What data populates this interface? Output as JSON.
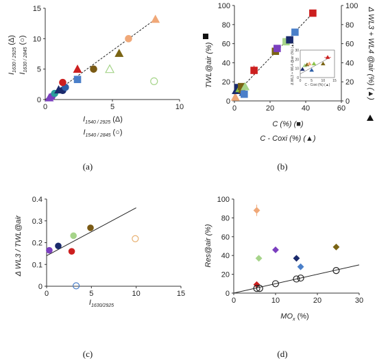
{
  "chart_data": [
    {
      "panel": "(a)",
      "type": "scatter",
      "xlabel_parts": [
        {
          "main": "I",
          "sub": "1540 / 2925",
          "suffix": " (Δ)"
        },
        {
          "main": "I",
          "sub": "1540 / 2845",
          "suffix": " (○)"
        }
      ],
      "ylabel_parts": [
        {
          "main": "I",
          "sub": "1630 / 2925",
          "suffix": " (Δ)"
        },
        {
          "main": "I",
          "sub": "1630 / 2845",
          "suffix": " (○)"
        }
      ],
      "xlim": [
        0,
        10
      ],
      "ylim": [
        0,
        15
      ],
      "xticks": [
        "0",
        "5",
        "10"
      ],
      "yticks": [
        "0",
        "5",
        "10",
        "15"
      ],
      "fit_line": {
        "style": "dashed",
        "x": [
          0,
          8.2
        ],
        "y": [
          0,
          13.2
        ]
      },
      "points": [
        {
          "x": 0.5,
          "y": 0.5,
          "marker": "circle",
          "color": "#7b3fbf",
          "filled": true
        },
        {
          "x": 0.3,
          "y": 0.3,
          "marker": "triangle",
          "color": "#7b3fbf",
          "filled": true
        },
        {
          "x": 0.7,
          "y": 1.0,
          "marker": "circle",
          "color": "#2a9d9a",
          "filled": true
        },
        {
          "x": 1.3,
          "y": 1.5,
          "marker": "circle",
          "color": "#1a2a6c",
          "filled": true
        },
        {
          "x": 1.0,
          "y": 1.6,
          "marker": "triangle",
          "color": "#1a2a6c",
          "filled": true
        },
        {
          "x": 1.5,
          "y": 2.0,
          "marker": "circle",
          "color": "#2d5fa8",
          "filled": true
        },
        {
          "x": 1.3,
          "y": 2.8,
          "marker": "circle",
          "color": "#cc1f1f",
          "filled": true
        },
        {
          "x": 2.4,
          "y": 5.0,
          "marker": "triangle",
          "color": "#cc1f1f",
          "filled": true
        },
        {
          "x": 2.4,
          "y": 3.3,
          "marker": "square",
          "color": "#4a7fc9",
          "filled": true
        },
        {
          "x": 3.6,
          "y": 5.0,
          "marker": "circle",
          "color": "#7a5a14",
          "filled": true
        },
        {
          "x": 5.5,
          "y": 7.6,
          "marker": "triangle",
          "color": "#7a6414",
          "filled": true
        },
        {
          "x": 4.8,
          "y": 5.0,
          "marker": "triangle",
          "color": "#a6d48a",
          "filled": false
        },
        {
          "x": 6.2,
          "y": 10.0,
          "marker": "circle",
          "color": "#f0a878",
          "filled": true
        },
        {
          "x": 8.2,
          "y": 13.2,
          "marker": "triangle",
          "color": "#f0a878",
          "filled": true
        },
        {
          "x": 8.1,
          "y": 3.0,
          "marker": "circle",
          "color": "#a6d48a",
          "filled": false
        }
      ]
    },
    {
      "panel": "(b)",
      "type": "scatter",
      "ylabel_left": "TWL@air (%)",
      "ylabel_right": "Δ WL3 + WL4 @air (%) (▲)",
      "xlabel_lines": [
        "C (%) (■)",
        "C - Coxi (%) (▲)"
      ],
      "xlim": [
        0,
        60
      ],
      "ylim": [
        0,
        100
      ],
      "xticks": [
        "0",
        "20",
        "40",
        "60"
      ],
      "yticks": [
        "0",
        "20",
        "40",
        "60",
        "80",
        "100"
      ],
      "fit_line": {
        "style": "dashed",
        "x": [
          0,
          44
        ],
        "y": [
          6,
          92
        ]
      },
      "points": [
        {
          "x": 0.5,
          "y": 4,
          "marker": "triangle",
          "color": "#f0a878"
        },
        {
          "x": 1,
          "y": 11,
          "marker": "triangle",
          "color": "#1a2a6c"
        },
        {
          "x": 2,
          "y": 14,
          "marker": "square",
          "color": "#1a2a6c"
        },
        {
          "x": 3,
          "y": 13,
          "marker": "triangle",
          "color": "#8bc34a"
        },
        {
          "x": 4,
          "y": 15,
          "marker": "square",
          "color": "#7a6414"
        },
        {
          "x": 4.5,
          "y": 12,
          "marker": "triangle",
          "color": "#7a6414"
        },
        {
          "x": 5,
          "y": 9,
          "marker": "triangle",
          "color": "#2d5fa8"
        },
        {
          "x": 5.5,
          "y": 7,
          "marker": "square",
          "color": "#4a7fc9"
        },
        {
          "x": 6,
          "y": 15,
          "marker": "triangle",
          "color": "#a6d48a"
        },
        {
          "x": 11,
          "y": 32,
          "marker": "square",
          "color": "#cc1f1f"
        },
        {
          "x": 23,
          "y": 52,
          "marker": "square",
          "color": "#7a6414"
        },
        {
          "x": 24,
          "y": 55,
          "marker": "square",
          "color": "#7b3fbf"
        },
        {
          "x": 29,
          "y": 62,
          "marker": "square",
          "color": "#a6d48a"
        },
        {
          "x": 31,
          "y": 64,
          "marker": "square",
          "color": "#1a2a6c"
        },
        {
          "x": 34,
          "y": 72,
          "marker": "square",
          "color": "#4a7fc9"
        },
        {
          "x": 44,
          "y": 92,
          "marker": "square",
          "color": "#cc1f1f"
        }
      ],
      "inset": {
        "xlabel": "C - Coxi (%) (▲)",
        "ylabel": "Δ WL3 + WL4 @air (%) (▲)",
        "xticks": [
          "0",
          "5",
          "10",
          "15"
        ],
        "yticks": [
          "0",
          "10",
          "20",
          "30"
        ],
        "xlim": [
          0,
          15
        ],
        "ylim": [
          0,
          30
        ],
        "points": [
          {
            "x": 1,
            "y": 9,
            "color": "#1a2a6c"
          },
          {
            "x": 2,
            "y": 13,
            "color": "#a6d48a"
          },
          {
            "x": 3,
            "y": 14,
            "color": "#7a6414"
          },
          {
            "x": 4,
            "y": 15,
            "color": "#f0a878"
          },
          {
            "x": 5,
            "y": 8,
            "color": "#2d5fa8"
          },
          {
            "x": 6,
            "y": 15,
            "color": "#8bc34a"
          },
          {
            "x": 10,
            "y": 15,
            "color": "#7a6414"
          },
          {
            "x": 12,
            "y": 22,
            "color": "#cc1f1f"
          }
        ]
      }
    },
    {
      "panel": "(c)",
      "type": "scatter",
      "ylabel": "Δ WL3 / TWL@air",
      "xlabel": {
        "main": "I",
        "sub": "1630/2925"
      },
      "xlim": [
        0,
        15
      ],
      "ylim": [
        0,
        0.4
      ],
      "xticks": [
        "0",
        "5",
        "10",
        "15"
      ],
      "yticks": [
        "0",
        "0.1",
        "0.2",
        "0.3",
        "0.4"
      ],
      "fit_line": {
        "style": "solid",
        "x": [
          0,
          10
        ],
        "y": [
          0.14,
          0.36
        ]
      },
      "points": [
        {
          "x": 0.3,
          "y": 0.165,
          "color": "#7b3fbf",
          "filled": true
        },
        {
          "x": 1.3,
          "y": 0.185,
          "color": "#1a2a6c",
          "filled": true
        },
        {
          "x": 2.8,
          "y": 0.16,
          "color": "#cc1f1f",
          "filled": true
        },
        {
          "x": 3.0,
          "y": 0.232,
          "color": "#a6d48a",
          "filled": true
        },
        {
          "x": 4.9,
          "y": 0.268,
          "color": "#7a5a14",
          "filled": true
        },
        {
          "x": 3.3,
          "y": 0.002,
          "color": "#4a7fc9",
          "filled": false
        },
        {
          "x": 9.9,
          "y": 0.218,
          "color": "#e8b070",
          "filled": false
        }
      ]
    },
    {
      "panel": "(d)",
      "type": "scatter",
      "ylabel": "Res@air (%)",
      "xlabel": {
        "main": "MO",
        "sub": "x",
        "suffix": " (%)"
      },
      "xlim": [
        0,
        30
      ],
      "ylim": [
        0,
        100
      ],
      "xticks": [
        "0",
        "10",
        "20",
        "30"
      ],
      "yticks": [
        "0",
        "20",
        "40",
        "60",
        "80",
        "100"
      ],
      "fit_line": {
        "style": "solid",
        "x": [
          0,
          30
        ],
        "y": [
          0,
          30
        ]
      },
      "points": [
        {
          "x": 5.5,
          "y": 88,
          "marker": "diamond",
          "color": "#f0a878",
          "err": 6
        },
        {
          "x": 6,
          "y": 37,
          "marker": "diamond",
          "color": "#a6d48a"
        },
        {
          "x": 10,
          "y": 46,
          "marker": "diamond",
          "color": "#7b3fbf"
        },
        {
          "x": 15,
          "y": 37,
          "marker": "diamond",
          "color": "#1a2a6c"
        },
        {
          "x": 16,
          "y": 28,
          "marker": "diamond",
          "color": "#4a7fc9"
        },
        {
          "x": 24.5,
          "y": 49,
          "marker": "diamond",
          "color": "#7a6414"
        },
        {
          "x": 5.5,
          "y": 9,
          "marker": "diamond",
          "color": "#cc1f1f"
        },
        {
          "x": 5.5,
          "y": 5,
          "marker": "circle",
          "color": "#222222",
          "filled": false
        },
        {
          "x": 6.2,
          "y": 5,
          "marker": "circle",
          "color": "#222222",
          "filled": false
        },
        {
          "x": 10,
          "y": 10,
          "marker": "circle",
          "color": "#222222",
          "filled": false
        },
        {
          "x": 15,
          "y": 15,
          "marker": "circle",
          "color": "#222222",
          "filled": false
        },
        {
          "x": 16,
          "y": 16,
          "marker": "circle",
          "color": "#222222",
          "filled": false
        },
        {
          "x": 24.5,
          "y": 24,
          "marker": "circle",
          "color": "#222222",
          "filled": false
        }
      ]
    }
  ]
}
